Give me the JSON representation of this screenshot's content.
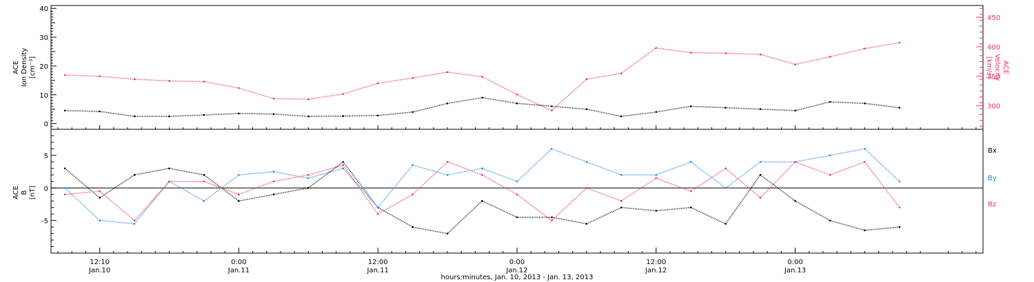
{
  "chart_data": [
    {
      "type": "scatter",
      "panel": "top",
      "ylabel_left": [
        "ACE",
        "Ion Density",
        "[cm⁻³]"
      ],
      "ylabel_right": [
        "ACE",
        "Velocity",
        "[km/s]"
      ],
      "ylim_left": [
        -2,
        41
      ],
      "ylim_right": [
        260,
        470
      ],
      "yticks_left": [
        "0",
        "10",
        "20",
        "30",
        "40"
      ],
      "yticks_right": [
        "300",
        "350",
        "400",
        "450"
      ],
      "series": [
        {
          "axis": "left",
          "color": "#000000",
          "x": [
            -5,
            0,
            5,
            10,
            15,
            20,
            25,
            30,
            35,
            40,
            45,
            50,
            55,
            60,
            65,
            70,
            75,
            80,
            85,
            90,
            95,
            100,
            105,
            110,
            115
          ],
          "y": [
            4.5,
            4.2,
            2.5,
            2.5,
            3,
            3.5,
            3.3,
            2.5,
            2.6,
            2.8,
            4,
            7,
            9,
            7,
            6,
            5,
            2.5,
            4,
            6,
            5.5,
            5,
            4.5,
            7.5,
            7,
            5.5
          ]
        },
        {
          "axis": "right",
          "color": "#e8335a",
          "x": [
            -5,
            0,
            5,
            10,
            15,
            20,
            25,
            30,
            35,
            40,
            45,
            50,
            55,
            60,
            65,
            70,
            75,
            80,
            85,
            90,
            95,
            100,
            105,
            110,
            115
          ],
          "y": [
            352,
            350,
            345,
            342,
            341,
            330,
            312,
            311,
            320,
            338,
            347,
            357,
            349,
            319,
            292,
            345,
            355,
            398,
            390,
            389,
            387,
            370,
            383,
            397,
            407
          ]
        }
      ]
    },
    {
      "type": "scatter",
      "panel": "bottom",
      "ylabel": [
        "ACE",
        "B",
        "[nT]"
      ],
      "ylim": [
        -10,
        9
      ],
      "yticks": [
        "-5",
        "0",
        "5"
      ],
      "legend": [
        "Bx",
        "By",
        "Bz"
      ],
      "series": [
        {
          "name": "Bx",
          "color": "#000000",
          "x": [
            -5,
            0,
            5,
            10,
            15,
            20,
            25,
            30,
            35,
            40,
            45,
            50,
            55,
            60,
            65,
            70,
            75,
            80,
            85,
            90,
            95,
            100,
            105,
            110,
            115
          ],
          "y": [
            3,
            -1.5,
            2,
            3,
            2,
            -2,
            -1,
            0,
            4,
            -3,
            -6,
            -7,
            -2,
            -4.5,
            -4.5,
            -5.5,
            -3,
            -3.5,
            -3,
            -5.5,
            2,
            -2,
            -5,
            -6.5,
            -6
          ]
        },
        {
          "name": "By",
          "color": "#1f86e0",
          "x": [
            -5,
            0,
            5,
            10,
            15,
            20,
            25,
            30,
            35,
            40,
            45,
            50,
            55,
            60,
            65,
            70,
            75,
            80,
            85,
            90,
            95,
            100,
            105,
            110,
            115
          ],
          "y": [
            0,
            -5,
            -5.5,
            1,
            -2,
            2,
            2.5,
            1.5,
            3,
            -3,
            3.5,
            2,
            3,
            1,
            6,
            4,
            2,
            2,
            4,
            0,
            4,
            4,
            5,
            6,
            1
          ]
        },
        {
          "name": "Bz",
          "color": "#e8335a",
          "x": [
            -5,
            0,
            5,
            10,
            15,
            20,
            25,
            30,
            35,
            40,
            45,
            50,
            55,
            60,
            65,
            70,
            75,
            80,
            85,
            90,
            95,
            100,
            105,
            110,
            115
          ],
          "y": [
            -1,
            -0.5,
            -5,
            1,
            1,
            -1,
            1,
            2,
            3.5,
            -4,
            -1,
            4,
            2,
            -1,
            -5,
            0,
            -2,
            1.5,
            -0.5,
            3,
            -1.5,
            4,
            2,
            4,
            -3
          ]
        }
      ]
    }
  ],
  "x_axis": {
    "xlim": [
      -7,
      127
    ],
    "ticks": [
      {
        "x": 0,
        "time": "12:10",
        "date": "Jan.10"
      },
      {
        "x": 20,
        "time": "0:00",
        "date": "Jan.11"
      },
      {
        "x": 40,
        "time": "12:00",
        "date": "Jan.11"
      },
      {
        "x": 60,
        "time": "0:00",
        "date": "Jan.12"
      },
      {
        "x": 80,
        "time": "12:00",
        "date": "Jan.12"
      },
      {
        "x": 100,
        "time": "0:00",
        "date": "Jan.13"
      }
    ],
    "xlabel": "hours:minutes, Jan. 10, 2013 - Jan. 13, 2013"
  }
}
